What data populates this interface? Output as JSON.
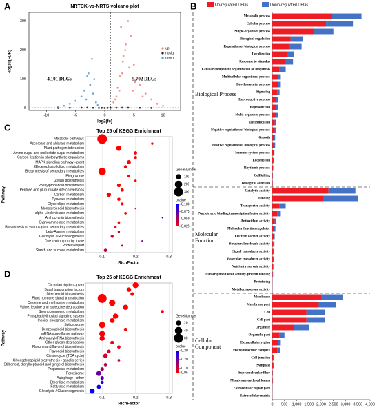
{
  "chart_data": [
    {
      "type": "scatter",
      "panel_label": "A",
      "title": "NRTCK-vs-NRTS volcano plot",
      "xlabel": "log2(fc)",
      "ylabel": "-log10(FDR)",
      "xlim": [
        -13,
        13
      ],
      "ylim": [
        -8,
        330
      ],
      "xticks": [
        -10,
        -5,
        0,
        5,
        10
      ],
      "yticks": [
        0,
        100,
        200,
        300
      ],
      "thresholds_x": [
        -1,
        1
      ],
      "threshold_y": 1.3,
      "legend": "upper right",
      "annotations": [
        "4,101 DEGs",
        "5,702 DEGs"
      ],
      "series": [
        {
          "name": "up",
          "color": "#f4837d",
          "x": [
            1.5,
            2,
            2.5,
            3,
            3.5,
            4,
            4.5,
            5,
            5.5,
            6,
            7,
            8,
            9,
            10,
            2.8,
            3.2,
            4.2,
            1.8,
            2.2,
            6.5,
            3.6,
            5.2,
            4.8,
            3.1,
            2.6
          ],
          "y": [
            20,
            40,
            60,
            120,
            200,
            300,
            250,
            150,
            100,
            80,
            50,
            30,
            15,
            8,
            280,
            180,
            140,
            30,
            70,
            40,
            220,
            90,
            60,
            160,
            110
          ]
        },
        {
          "name": "nosig",
          "color": "#222222",
          "x": [
            -6,
            -4,
            -2,
            -1,
            -0.5,
            0,
            0.5,
            1,
            2,
            4,
            6,
            -8,
            8,
            -3,
            3
          ],
          "y": [
            1,
            1.5,
            1,
            0.5,
            0.8,
            0.3,
            0.8,
            1,
            1.2,
            1.5,
            1,
            0.5,
            0.5,
            1.8,
            1.6
          ]
        },
        {
          "name": "down",
          "color": "#5b9bd5",
          "x": [
            -1.5,
            -2,
            -2.5,
            -3,
            -3.5,
            -4,
            -5,
            -6,
            -7,
            -8,
            -2.2,
            -1.8,
            -3.2,
            -2.8,
            -1.2
          ],
          "y": [
            20,
            50,
            80,
            110,
            60,
            40,
            25,
            15,
            8,
            5,
            170,
            100,
            30,
            120,
            10
          ]
        }
      ]
    },
    {
      "type": "bar",
      "orientation": "horizontal",
      "stacked": true,
      "panel_label": "B",
      "xlim": [
        0,
        4000
      ],
      "xticks": [
        0,
        500,
        {
          "value": 1000,
          "label": "1,000"
        },
        {
          "value": 1500,
          "label": "1,500"
        },
        {
          "value": 2000,
          "label": "2,000"
        },
        {
          "value": 2500,
          "label": "2,500"
        },
        {
          "value": 3000,
          "label": "3,000"
        },
        {
          "value": 3500,
          "label": "3,500"
        },
        {
          "value": 4000,
          "label": "4,000"
        }
      ],
      "series": [
        {
          "name": "Up-regulated DEGs",
          "color": "#ee1c25"
        },
        {
          "name": "Down-regulated DEGs",
          "color": "#4472c4"
        }
      ],
      "groups": [
        {
          "name": "Biological Process",
          "categories": [
            "Metabolic process",
            "Cellular process",
            "Single-organism process",
            "Biological regulation",
            "Regulation of biological process",
            "Localization",
            "Response to stimulus",
            "Cellular component organization or biogenesis",
            "Multicellular organismal process",
            "Developmental process",
            "Signaling",
            "Reproductive process",
            "Reproduction",
            "Multi-organism process",
            "Detoxification",
            "Negative regulation of biological process",
            "Growth",
            "Positive regulation of biological process",
            "Immune system process",
            "Locomotion",
            "Rhythmic process",
            "Cell killing",
            "Biological adhesion"
          ],
          "values": [
            [
              2450,
              2200,
              1700,
              750,
              700,
              600,
              550,
              300,
              250,
              250,
              200,
              150,
              150,
              150,
              100,
              100,
              80,
              80,
              60,
              40,
              30,
              20,
              20
            ],
            [
              1200,
              1100,
              800,
              500,
              500,
              300,
              300,
              250,
              100,
              100,
              100,
              100,
              100,
              100,
              50,
              50,
              40,
              40,
              30,
              20,
              15,
              10,
              5
            ]
          ]
        },
        {
          "name": "Molecular Function",
          "categories": [
            "Catalytic activity",
            "Binding",
            "Transporter activity",
            "Nucleic acid binding transcription factor activity",
            "Antioxidant activity",
            "Molecular function regulator",
            "Electron carrier activity",
            "Structural molecule activity",
            "Signal transducer activity",
            "Molecular transducer activity",
            "Nutrient reservoir activity",
            "Transcription factor activity, protein binding",
            "Protein tag",
            "Metallochaperone activity"
          ],
          "values": [
            [
              2300,
              2100,
              300,
              200,
              100,
              80,
              60,
              50,
              40,
              40,
              30,
              20,
              10,
              5
            ],
            [
              1100,
              1400,
              250,
              150,
              50,
              50,
              40,
              40,
              30,
              30,
              20,
              15,
              5,
              3
            ]
          ]
        },
        {
          "name": "Cellular Component",
          "categories": [
            "Membrane",
            "Membrane part",
            "Cell",
            "Cell part",
            "Organelle",
            "Organelle part",
            "Extracellular region",
            "Macromolecular complex",
            "Cell junction",
            "Symplast",
            "Supramolecular fiber",
            "Membrane-enclosed lumen",
            "Extracellular region part",
            "Extracellular matrix"
          ],
          "values": [
            [
              2000,
              1900,
              1400,
              1400,
              900,
              300,
              250,
              200,
              50,
              50,
              20,
              20,
              10,
              5
            ],
            [
              900,
              700,
              750,
              750,
              600,
              200,
              100,
              120,
              30,
              30,
              10,
              10,
              5,
              3
            ]
          ]
        }
      ]
    },
    {
      "type": "bubble",
      "panel_label": "C",
      "title": "Top 25 of KEGG Enrichment",
      "xlabel": "RichFactor",
      "ylabel": "Pathway",
      "xlim": [
        0.05,
        0.31
      ],
      "xticks": [
        0.1,
        0.2,
        0.3
      ],
      "grid": true,
      "size_title": "GeneNumber",
      "size_legend": [
        100,
        200,
        300
      ],
      "color_title": "pvalue",
      "color_ticks": [
        {
          "value": 0.1,
          "label": "0.100"
        },
        {
          "value": 0.075,
          "label": "0.075"
        },
        {
          "value": 0.05,
          "label": "0.050"
        },
        {
          "value": 0.025,
          "label": "0.025"
        }
      ],
      "categories": [
        "Metabolic pathways",
        "Ascorbate and aldarate metabolism",
        "Plant-pathogen interaction",
        "Amino sugar and nucleotide sugar metabolism",
        "Carbon fixation in photosynthetic organisms",
        "MAPK signaling pathway - plant",
        "Glycerophospholipid metabolism",
        "Biosynthesis of secondary metabolites",
        "Phagosome",
        "Zeatin biosynthesis",
        "Phenylpropanoid biosynthesis",
        "Pentose and glucuronate interconversions",
        "Carbon metabolism",
        "Pyruvate metabolism",
        "Glycerolipid metabolism",
        "Monoterpenoid biosynthesis",
        "alpha-Linolenic acid metabolism",
        "Anthocyanin biosynthesis",
        "Cyanoamino acid metabolism",
        "Biosynthesis of various plant secondary metabolites",
        "beta-Alanine metabolism",
        "Glycolysis / Gluconeogenesis",
        "One carbon pool by folate",
        "Protein export",
        "Starch and sucrose metabolism"
      ],
      "values": [
        0.1,
        0.25,
        0.15,
        0.2,
        0.2,
        0.18,
        0.17,
        0.1,
        0.18,
        0.2,
        0.15,
        0.16,
        0.12,
        0.15,
        0.16,
        0.2,
        0.17,
        0.28,
        0.15,
        0.14,
        0.15,
        0.13,
        0.22,
        0.16,
        0.11
      ],
      "sizes": [
        350,
        20,
        100,
        40,
        30,
        60,
        40,
        200,
        30,
        20,
        50,
        40,
        70,
        40,
        30,
        10,
        25,
        5,
        25,
        20,
        20,
        35,
        10,
        15,
        40
      ],
      "pvalues": [
        0.001,
        0.002,
        0.003,
        0.004,
        0.005,
        0.006,
        0.007,
        0.008,
        0.009,
        0.01,
        0.011,
        0.012,
        0.013,
        0.014,
        0.016,
        0.018,
        0.02,
        0.1,
        0.025,
        0.03,
        0.04,
        0.04,
        0.06,
        0.05,
        0.045
      ]
    },
    {
      "type": "bubble",
      "panel_label": "D",
      "title": "Top 25 of KEGG Enrichment",
      "xlabel": "RichFactor",
      "ylabel": "Pathway",
      "xlim": [
        0.05,
        0.31
      ],
      "xticks": [
        0.1,
        0.2,
        0.3
      ],
      "grid": true,
      "size_title": "GeneNumber",
      "size_legend": [
        20,
        40,
        60
      ],
      "color_title": "pvalue",
      "color_ticks": [
        {
          "value": 0.3,
          "label": "0.30"
        },
        {
          "value": 0.2,
          "label": "0.20"
        },
        {
          "value": 0.1,
          "label": "0.10"
        },
        {
          "value": 0.05,
          "label": "0.05"
        }
      ],
      "categories": [
        "Circadian rhythm - plant",
        "Basal transcription factors",
        "Diterpenoid biosynthesis",
        "Plant hormone signal transduction",
        "Cysteine and methionine metabolism",
        "Valine, leucine and isoleucine degradation",
        "Selenocompound metabolism",
        "Phosphatidylinositol signaling system",
        "Inositol phosphate metabolism",
        "Spliceosome",
        "Benzoxazinoid biosynthesis",
        "mRNA surveillance pathway",
        "Aminoacyl-tRNA biosynthesis",
        "Other glycan degradation",
        "Flavone and flavonol biosynthesis",
        "Flavonoid biosynthesis",
        "Citrate cycle (TCA cycle)",
        "Glycosphingolipid biosynthesis - ganglio series",
        "Stilbenoid, diarylheptanoid and gingerol biosynthesis",
        "Propanoate metabolism",
        "Peroxisome",
        "Autophagy - other",
        "Ether lipid metabolism",
        "Fatty acid metabolism",
        "Glycolysis / Gluconeogenesis"
      ],
      "values": [
        0.2,
        0.18,
        0.19,
        0.1,
        0.13,
        0.17,
        0.28,
        0.14,
        0.13,
        0.1,
        0.17,
        0.1,
        0.1,
        0.13,
        0.15,
        0.12,
        0.11,
        0.15,
        0.11,
        0.1,
        0.09,
        0.1,
        0.1,
        0.09,
        0.07
      ],
      "sizes": [
        25,
        15,
        10,
        60,
        30,
        20,
        8,
        20,
        18,
        30,
        8,
        25,
        20,
        10,
        8,
        10,
        15,
        5,
        8,
        10,
        18,
        10,
        8,
        12,
        20
      ],
      "pvalues": [
        0.01,
        0.02,
        0.02,
        0.02,
        0.03,
        0.03,
        0.04,
        0.04,
        0.05,
        0.05,
        0.05,
        0.06,
        0.06,
        0.07,
        0.07,
        0.08,
        0.09,
        0.1,
        0.12,
        0.15,
        0.2,
        0.22,
        0.25,
        0.28,
        0.3
      ]
    }
  ]
}
